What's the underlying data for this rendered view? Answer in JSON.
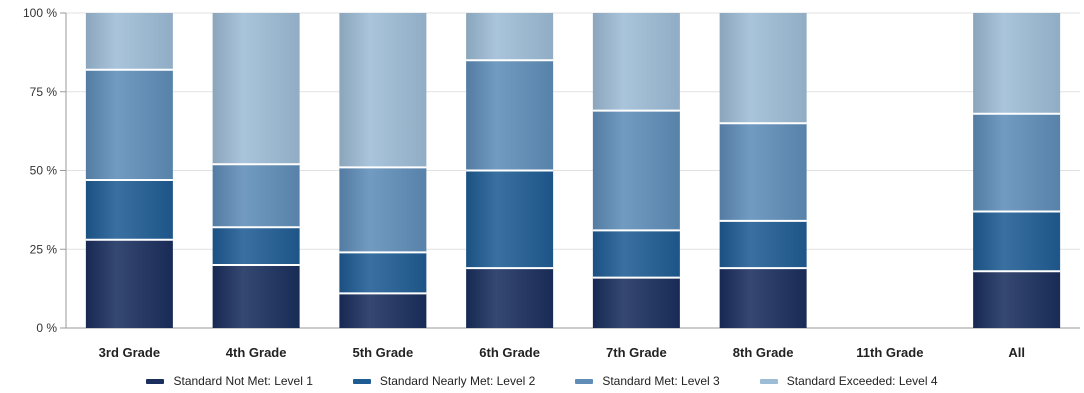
{
  "chart_data": {
    "type": "bar",
    "stacked": true,
    "normalized_percent": true,
    "categories": [
      "3rd Grade",
      "4th Grade",
      "5th Grade",
      "6th Grade",
      "7th Grade",
      "8th Grade",
      "11th Grade",
      "All"
    ],
    "series": [
      {
        "name": "Standard Not Met: Level 1",
        "color": "#1a2f5e",
        "values": [
          28,
          20,
          11,
          19,
          16,
          19,
          0,
          18
        ]
      },
      {
        "name": "Standard Nearly Met: Level 2",
        "color": "#1f5c94",
        "values": [
          19,
          12,
          13,
          31,
          15,
          15,
          0,
          19
        ]
      },
      {
        "name": "Standard Met: Level 3",
        "color": "#5f8db8",
        "values": [
          35,
          20,
          27,
          35,
          38,
          31,
          0,
          31
        ]
      },
      {
        "name": "Standard Exceeded: Level 4",
        "color": "#9dbcd6",
        "values": [
          18,
          48,
          49,
          15,
          31,
          35,
          0,
          32
        ]
      }
    ],
    "yticks": [
      "0 %",
      "25 %",
      "50 %",
      "75 %",
      "100 %"
    ],
    "ylim": [
      0,
      100
    ],
    "grid": true,
    "legend_position": "bottom"
  }
}
